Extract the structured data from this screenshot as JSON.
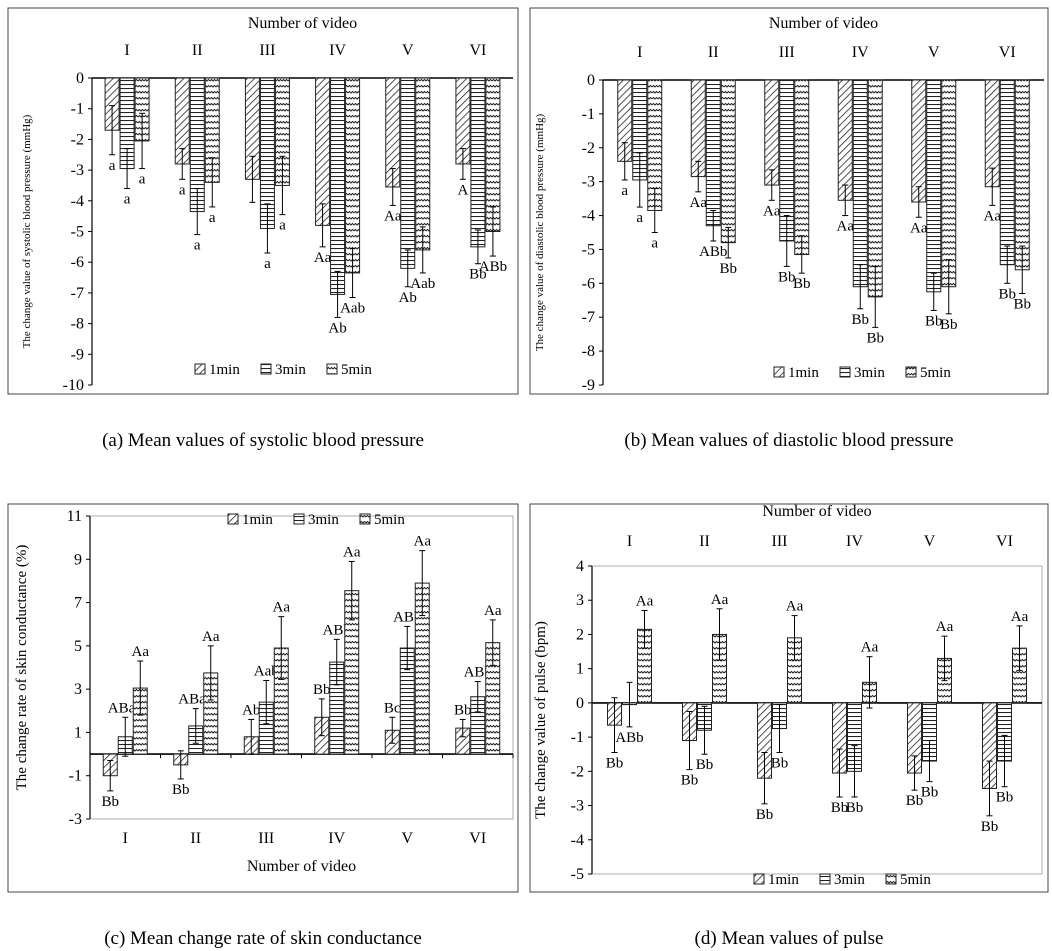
{
  "legend_labels": [
    "1min",
    "3min",
    "5min"
  ],
  "captions": {
    "a": "(a) Mean values of systolic blood pressure",
    "b": "(b) Mean values of diastolic blood pressure",
    "c": "(c) Mean change rate of skin conductance",
    "d": "(d) Mean values of pulse"
  },
  "chart_data": [
    {
      "id": "a",
      "type": "bar",
      "title": "",
      "xlabel": "Number of video",
      "xlabel_position": "top",
      "ylabel": "The change value of systolic blood pressure (mmHg)",
      "categories": [
        "I",
        "II",
        "III",
        "IV",
        "V",
        "VI"
      ],
      "ylim": [
        -10,
        0
      ],
      "yticks": [
        0,
        -1,
        -2,
        -3,
        -4,
        -5,
        -6,
        -7,
        -8,
        -9,
        -10
      ],
      "legend": "bottom-inside",
      "series": [
        {
          "name": "1min",
          "values": [
            -1.7,
            -2.8,
            -3.3,
            -4.8,
            -3.55,
            -2.8
          ],
          "errors": [
            0.8,
            0.5,
            0.75,
            0.7,
            0.6,
            0.5
          ],
          "labels": [
            "a",
            "a",
            "",
            "Aa",
            "Aa",
            "A"
          ]
        },
        {
          "name": "3min",
          "values": [
            -2.95,
            -4.35,
            -4.9,
            -7.05,
            -6.2,
            -5.5
          ],
          "errors": [
            0.65,
            0.75,
            0.8,
            0.75,
            0.6,
            0.55
          ],
          "labels": [
            "a",
            "a",
            "a",
            "Ab",
            "Ab",
            "Bb"
          ]
        },
        {
          "name": "5min",
          "values": [
            -2.05,
            -3.4,
            -3.5,
            -6.35,
            -5.6,
            -5.0
          ],
          "errors": [
            0.9,
            0.8,
            0.95,
            0.8,
            0.75,
            0.8
          ],
          "labels": [
            "a",
            "a",
            "a",
            "Aab",
            "Aab",
            "ABb"
          ]
        }
      ]
    },
    {
      "id": "b",
      "type": "bar",
      "title": "",
      "xlabel": "Number of video",
      "xlabel_position": "top",
      "ylabel": "The change value of diastolic blood pressure (mmHg)",
      "categories": [
        "I",
        "II",
        "III",
        "IV",
        "V",
        "VI"
      ],
      "ylim": [
        -9,
        0
      ],
      "yticks": [
        0,
        -1,
        -2,
        -3,
        -4,
        -5,
        -6,
        -7,
        -8,
        -9
      ],
      "legend": "bottom-inside",
      "series": [
        {
          "name": "1min",
          "values": [
            -2.4,
            -2.85,
            -3.1,
            -3.55,
            -3.6,
            -3.15
          ],
          "errors": [
            0.55,
            0.45,
            0.45,
            0.45,
            0.45,
            0.55
          ],
          "labels": [
            "a",
            "Aa",
            "Aa",
            "Aa",
            "Aa",
            "Aa"
          ]
        },
        {
          "name": "3min",
          "values": [
            -2.95,
            -4.3,
            -4.75,
            -6.1,
            -6.25,
            -5.45
          ],
          "errors": [
            0.8,
            0.45,
            0.75,
            0.65,
            0.55,
            0.55
          ],
          "labels": [
            "a",
            "ABb",
            "Bb",
            "Bb",
            "Bb",
            "Bb"
          ]
        },
        {
          "name": "5min",
          "values": [
            -3.85,
            -4.8,
            -5.15,
            -6.4,
            -6.1,
            -5.6
          ],
          "errors": [
            0.65,
            0.45,
            0.55,
            0.9,
            0.8,
            0.7
          ],
          "labels": [
            "a",
            "Bb",
            "Bb",
            "Bb",
            "Bb",
            "Bb"
          ]
        }
      ]
    },
    {
      "id": "c",
      "type": "bar",
      "title": "",
      "xlabel": "Number of video",
      "xlabel_position": "bottom",
      "ylabel": "The change rate of skin conductance (%)",
      "categories": [
        "I",
        "II",
        "III",
        "IV",
        "V",
        "VI"
      ],
      "ylim": [
        -3,
        11
      ],
      "yticks": [
        -3,
        -1,
        1,
        3,
        5,
        7,
        9,
        11
      ],
      "legend": "top-inside",
      "series": [
        {
          "name": "1min",
          "values": [
            -1.0,
            -0.5,
            0.8,
            1.7,
            1.1,
            1.2
          ],
          "errors": [
            0.7,
            0.65,
            0.8,
            0.85,
            0.6,
            0.4
          ],
          "labels": [
            "Bb",
            "Bb",
            "Ab",
            "Bb",
            "Bc",
            "Bb"
          ]
        },
        {
          "name": "3min",
          "values": [
            0.8,
            1.3,
            2.4,
            4.25,
            4.9,
            2.65
          ],
          "errors": [
            0.9,
            0.8,
            1.0,
            1.05,
            1.0,
            0.7
          ],
          "labels": [
            "ABab",
            "ABab",
            "Aab",
            "ABb",
            "ABb",
            "ABb"
          ]
        },
        {
          "name": "5min",
          "values": [
            3.05,
            3.75,
            4.9,
            7.55,
            7.9,
            5.15
          ],
          "errors": [
            1.25,
            1.25,
            1.45,
            1.35,
            1.5,
            1.05
          ],
          "labels": [
            "Aa",
            "Aa",
            "Aa",
            "Aa",
            "Aa",
            "Aa"
          ]
        }
      ]
    },
    {
      "id": "d",
      "type": "bar",
      "title": "",
      "xlabel": "Number of video",
      "xlabel_position": "top",
      "ylabel": "The change value of pulse (bpm)",
      "categories": [
        "I",
        "II",
        "III",
        "IV",
        "V",
        "VI"
      ],
      "ylim": [
        -5,
        4
      ],
      "yticks": [
        4,
        3,
        2,
        1,
        0,
        -1,
        -2,
        -3,
        -4,
        -5
      ],
      "legend": "bottom-inside",
      "series": [
        {
          "name": "1min",
          "values": [
            -0.65,
            -1.1,
            -2.2,
            -2.05,
            -2.05,
            -2.5
          ],
          "errors": [
            0.8,
            0.85,
            0.75,
            0.7,
            0.5,
            0.8
          ],
          "labels": [
            "Bb",
            "Bb",
            "Bb",
            "Bb",
            "Bb",
            "Bb"
          ]
        },
        {
          "name": "3min",
          "values": [
            -0.05,
            -0.8,
            -0.75,
            -2.0,
            -1.7,
            -1.7
          ],
          "errors": [
            0.65,
            0.7,
            0.7,
            0.75,
            0.6,
            0.75
          ],
          "labels": [
            "ABb",
            "Bb",
            "Bb",
            "Bb",
            "Bb",
            "Bb"
          ]
        },
        {
          "name": "5min",
          "values": [
            2.15,
            2.0,
            1.9,
            0.6,
            1.3,
            1.6
          ],
          "errors": [
            0.55,
            0.75,
            0.65,
            0.75,
            0.65,
            0.65
          ],
          "labels": [
            "Aa",
            "Aa",
            "Aa",
            "Aa",
            "Aa",
            "Aa"
          ]
        }
      ]
    }
  ]
}
